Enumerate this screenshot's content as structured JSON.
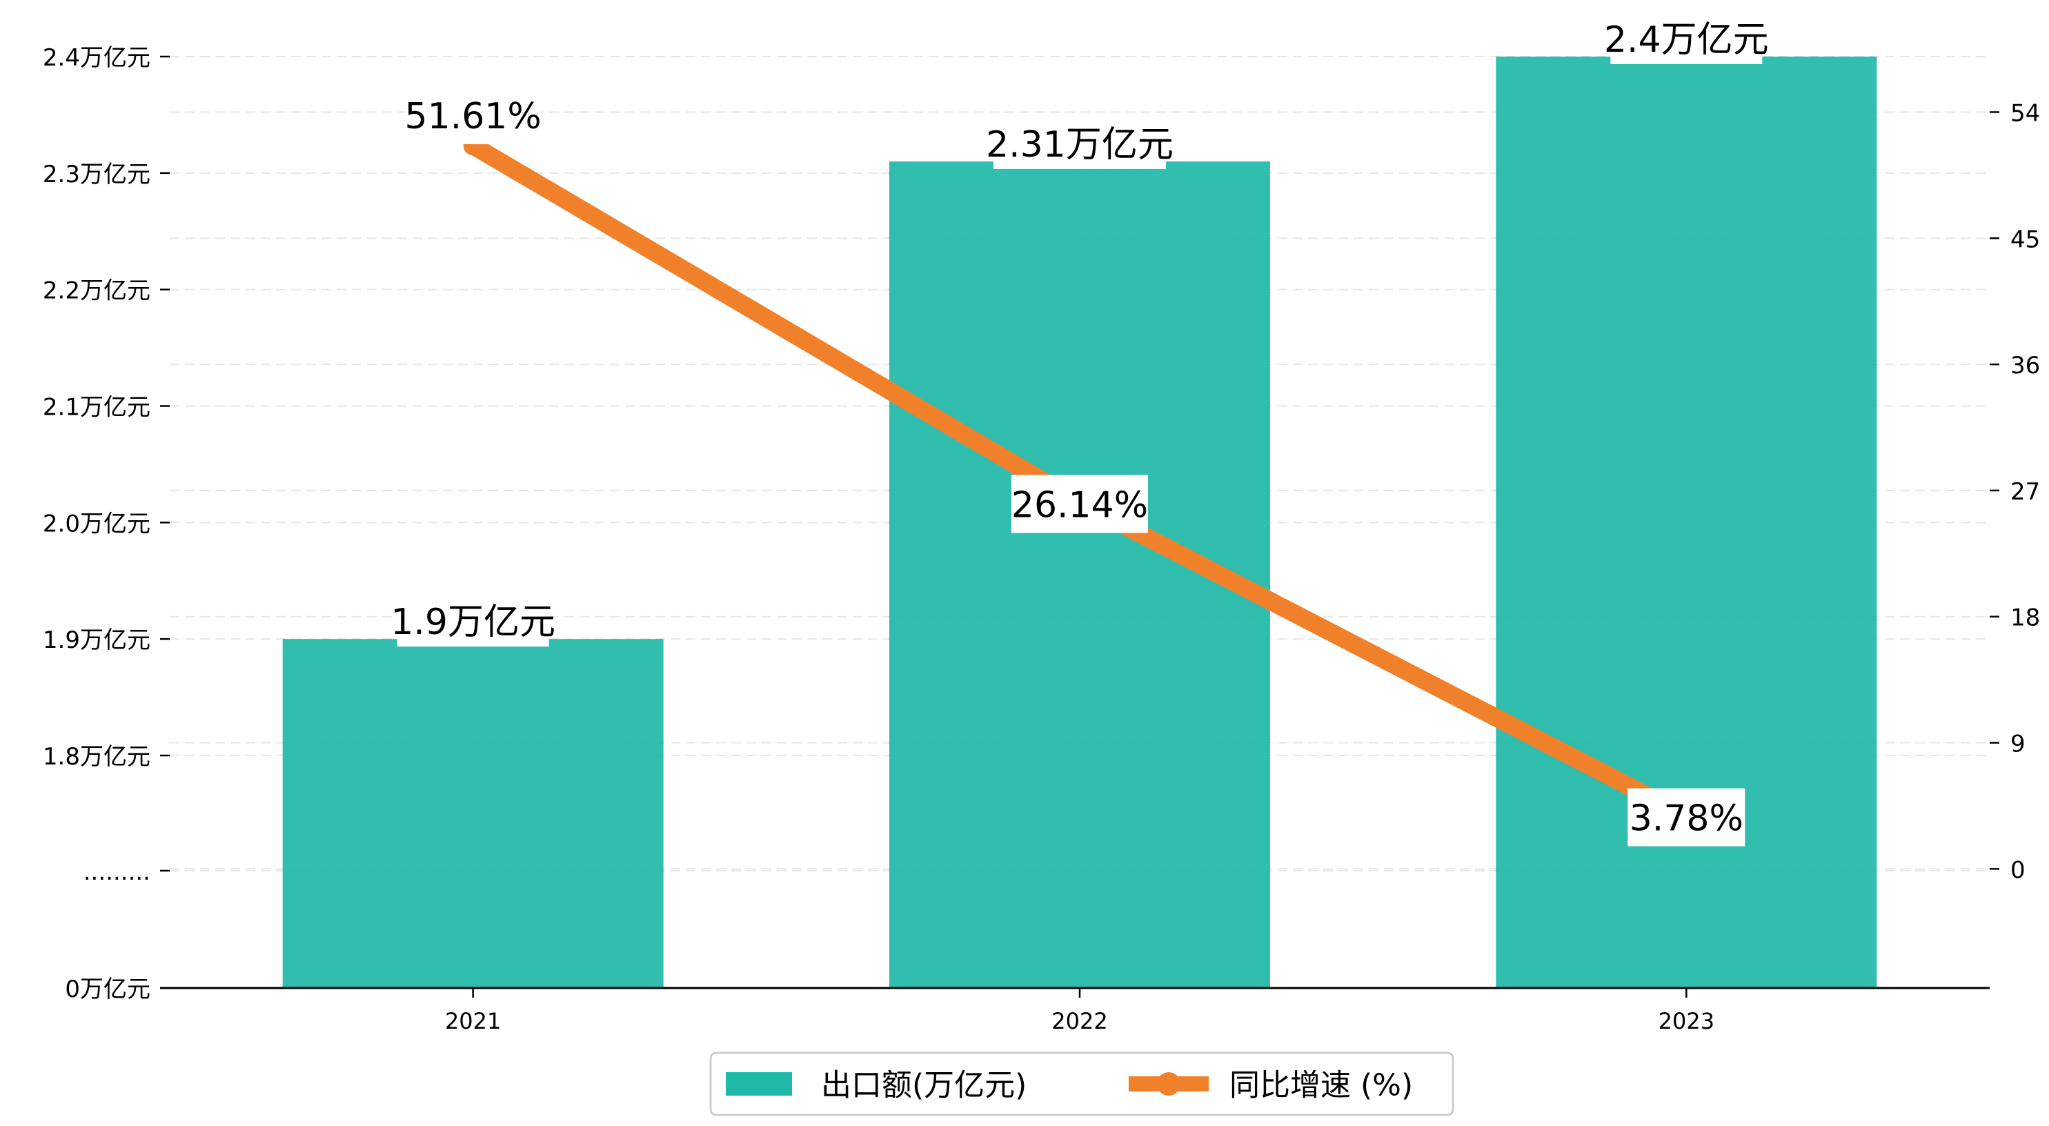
{
  "chart_data": {
    "type": "bar",
    "categories": [
      "2021",
      "2022",
      "2023"
    ],
    "series": [
      {
        "name": "出口额(万亿元)",
        "type": "bar",
        "axis": "left",
        "values": [
          1.9,
          2.31,
          2.4
        ],
        "labels": [
          "1.9万亿元",
          "2.31万亿元",
          "2.4万亿元"
        ]
      },
      {
        "name": "同比增速 (%)",
        "type": "line",
        "axis": "right",
        "values": [
          51.61,
          26.14,
          3.78
        ],
        "labels": [
          "51.61%",
          "26.14%",
          "3.78%"
        ]
      }
    ],
    "left_axis": {
      "broken": true,
      "tick_labels": [
        "0万亿元",
        ".........",
        "1.8万亿元",
        "1.9万亿元",
        "2.0万亿元",
        "2.1万亿元",
        "2.2万亿元",
        "2.3万亿元",
        "2.4万亿元"
      ]
    },
    "right_axis": {
      "ticks": [
        0,
        9,
        18,
        27,
        36,
        45,
        54
      ],
      "tick_labels": [
        "0",
        "9",
        "18",
        "27",
        "36",
        "45",
        "54"
      ],
      "ylim": [
        -8.5,
        62
      ]
    },
    "grid": true,
    "legend_position": "bottom-center",
    "colors": {
      "bar": "#20b9a8",
      "line": "#f0802a",
      "axis": "#000000",
      "grid": "#e6e6e6"
    }
  }
}
